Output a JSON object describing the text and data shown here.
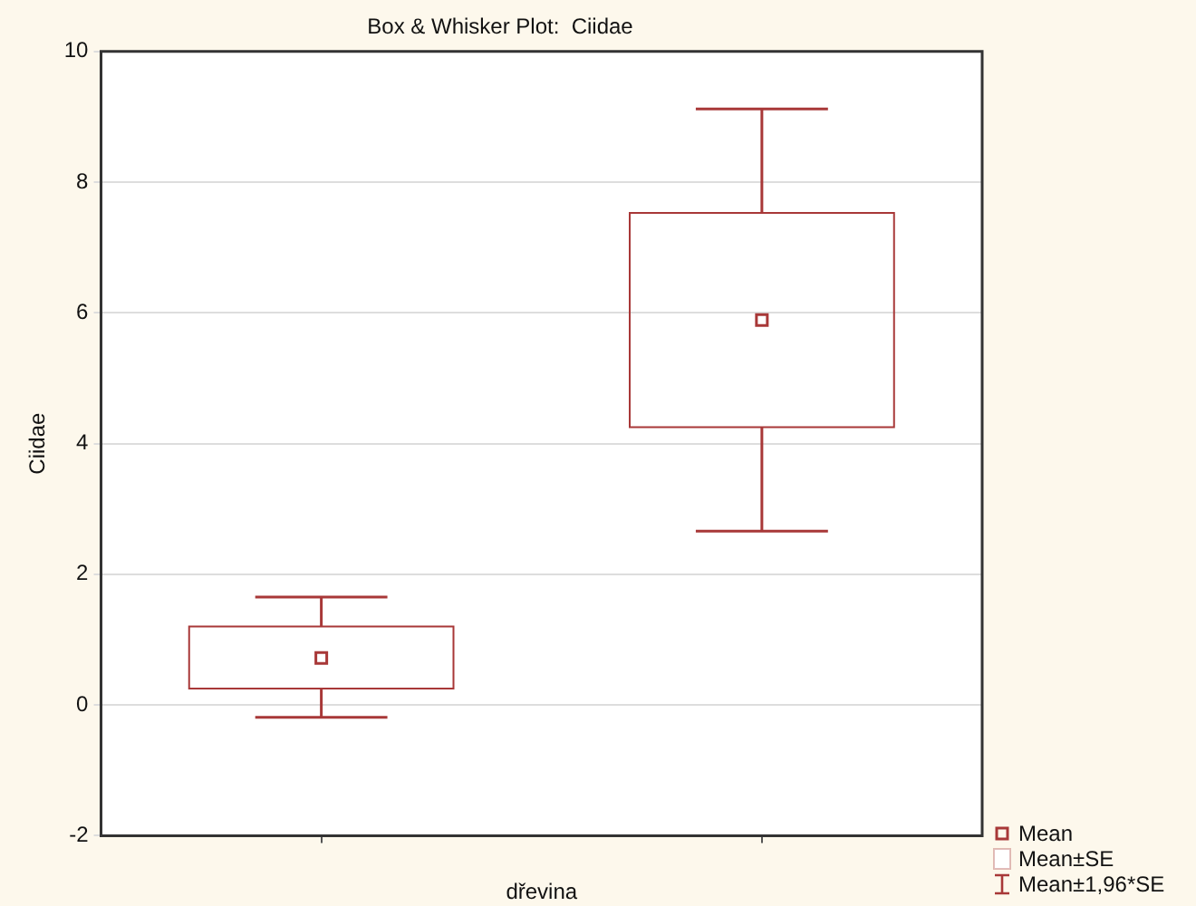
{
  "chart_data": {
    "type": "box",
    "title": "Box & Whisker Plot:  Ciidae",
    "xlabel": "dřevina",
    "ylabel": "Ciidae",
    "categories": [
      null,
      null
    ],
    "boxes": [
      {
        "low": -0.19,
        "q1": 0.25,
        "median": 0.72,
        "q3": 1.2,
        "high": 1.65
      },
      {
        "low": 2.66,
        "q1": 4.25,
        "median": 5.89,
        "q3": 7.53,
        "high": 9.12
      }
    ],
    "color": "#a83838",
    "ylim": [
      -2,
      10
    ],
    "yticks": [
      -2,
      0,
      2,
      4,
      6,
      8,
      10
    ],
    "grid": "y",
    "annotations": [
      "Mean",
      "Mean±SE",
      "Mean±1,96*SE"
    ]
  }
}
